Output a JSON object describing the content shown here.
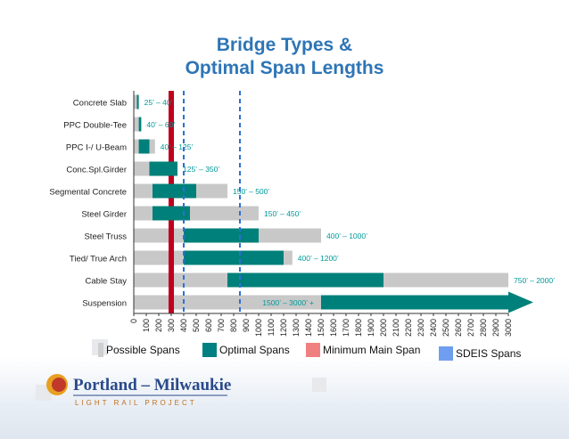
{
  "title_lines": [
    "Bridge Types &",
    "Optimal Span Lengths"
  ],
  "chart_data": {
    "type": "bar",
    "orientation": "horizontal",
    "categories": [
      "Concrete Slab",
      "PPC Double-Tee",
      "PPC I-/ U-Beam",
      "Conc.Spl.Girder",
      "Segmental Concrete",
      "Steel Girder",
      "Steel Truss",
      "Tied/ True Arch",
      "Cable Stay",
      "Suspension"
    ],
    "series": [
      {
        "name": "Possible Spans",
        "ranges": [
          [
            0,
            30
          ],
          [
            0,
            40
          ],
          [
            0,
            170
          ],
          [
            0,
            350
          ],
          [
            0,
            750
          ],
          [
            0,
            1000
          ],
          [
            0,
            1500
          ],
          [
            0,
            1270
          ],
          [
            0,
            3000
          ],
          [
            0,
            3000
          ]
        ]
      },
      {
        "name": "Optimal Spans",
        "ranges": [
          [
            25,
            40
          ],
          [
            40,
            60
          ],
          [
            40,
            125
          ],
          [
            125,
            350
          ],
          [
            150,
            500
          ],
          [
            150,
            450
          ],
          [
            400,
            1000
          ],
          [
            400,
            1200
          ],
          [
            750,
            2000
          ],
          [
            1500,
            3000
          ]
        ]
      }
    ],
    "data_labels": [
      "25’ – 40’",
      "40’ – 60’",
      "40’ – 125’",
      "125’ – 350’",
      "150’ – 500’",
      "150’ – 450’",
      "400’ – 1000’",
      "400’ – 1200’",
      "750’ – 2000’",
      "1500’ – 3000’ +"
    ],
    "reference_lines": [
      {
        "name": "Minimum Main Span",
        "value": 300,
        "color": "#c0001c"
      },
      {
        "name": "SDEIS Spans",
        "values": [
          400,
          850
        ],
        "color": "#2e6fd8"
      }
    ],
    "x_ticks": [
      0,
      100,
      200,
      300,
      400,
      500,
      600,
      700,
      800,
      900,
      1000,
      1100,
      1200,
      1300,
      1400,
      1500,
      1600,
      1700,
      1800,
      1900,
      2000,
      2100,
      2200,
      2300,
      2400,
      2500,
      2600,
      2700,
      2800,
      2900,
      3000
    ],
    "x_tick_labels": [
      "0",
      "100",
      "200",
      "300",
      "400",
      "500",
      "600",
      "700",
      "800",
      "900",
      "1000",
      "1100",
      "1200",
      "1300",
      "1400",
      "1500",
      "1600",
      "1700",
      "1800",
      "1900",
      "2000",
      "2100",
      "2200",
      "2300",
      "2400",
      "2500",
      "2600",
      "2700",
      "2800",
      "2900",
      "3000"
    ],
    "xlim": [
      0,
      3000
    ],
    "grid": false,
    "legend_position": "bottom"
  },
  "legend": [
    {
      "label": "Possible Spans",
      "color": "#cfcfcf"
    },
    {
      "label": "Optimal Spans",
      "color": "#008080"
    },
    {
      "label": "Minimum Main Span",
      "color": "#f08080"
    },
    {
      "label": "SDEIS Spans",
      "color": "#6f9ef0"
    }
  ],
  "colors": {
    "possible": "#c8c8c8",
    "optimal": "#00807a",
    "min_line": "#c0001c",
    "sdeis": "#2e6fd8",
    "label_text": "#009999",
    "title": "#2e75b6"
  },
  "logo": {
    "name_left": "Portland",
    "name_sep": " – ",
    "name_right": "Milwaukie",
    "subtitle": "LIGHT RAIL PROJECT"
  }
}
